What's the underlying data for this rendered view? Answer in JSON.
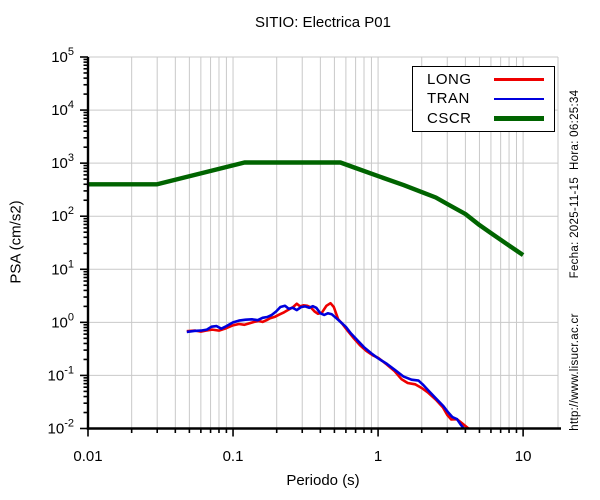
{
  "title": "SITIO: Electrica P01",
  "side_texts": {
    "datetime": "Fecha: 2025-11-15  Hora: 06:25:34",
    "url": "http://www.lisucr.ac.cr"
  },
  "colors": {
    "grid": "#c9c9c9",
    "axis": "#000000",
    "background": "#ffffff",
    "long": "#ee0000",
    "tran": "#0000dd",
    "cscr": "#006400"
  },
  "chart_data": {
    "type": "line",
    "title": "SITIO: Electrica P01",
    "xlabel": "Periodo (s)",
    "ylabel": "PSA (cm/s2)",
    "x_scale": "log",
    "y_scale": "log",
    "xlim": [
      0.01,
      17.4
    ],
    "ylim": [
      0.01,
      100000
    ],
    "x_tick_values": [
      0.01,
      0.1,
      1,
      10
    ],
    "x_tick_labels": [
      "0.01",
      "0.1",
      "1",
      "10"
    ],
    "y_tick_exponents": [
      5,
      4,
      3,
      2,
      1,
      0,
      -1,
      -2
    ],
    "grid": "vertical lines at all log minor/major positions; horizontal lines at decades",
    "legend_position": "top-right",
    "legend_entries": [
      "LONG",
      "TRAN",
      "CSCR"
    ],
    "series": [
      {
        "name": "LONG",
        "color": "#ee0000",
        "width": 2.6,
        "points": [
          [
            0.048,
            0.68
          ],
          [
            0.055,
            0.7
          ],
          [
            0.06,
            0.67
          ],
          [
            0.065,
            0.7
          ],
          [
            0.072,
            0.73
          ],
          [
            0.08,
            0.7
          ],
          [
            0.09,
            0.78
          ],
          [
            0.1,
            0.88
          ],
          [
            0.11,
            0.93
          ],
          [
            0.12,
            0.9
          ],
          [
            0.13,
            0.96
          ],
          [
            0.14,
            1.02
          ],
          [
            0.15,
            1.06
          ],
          [
            0.16,
            1.02
          ],
          [
            0.17,
            1.1
          ],
          [
            0.18,
            1.2
          ],
          [
            0.195,
            1.28
          ],
          [
            0.21,
            1.42
          ],
          [
            0.225,
            1.55
          ],
          [
            0.24,
            1.72
          ],
          [
            0.26,
            1.95
          ],
          [
            0.275,
            2.25
          ],
          [
            0.29,
            2.0
          ],
          [
            0.305,
            2.1
          ],
          [
            0.325,
            2.05
          ],
          [
            0.345,
            1.9
          ],
          [
            0.365,
            1.6
          ],
          [
            0.385,
            1.45
          ],
          [
            0.41,
            1.52
          ],
          [
            0.44,
            2.05
          ],
          [
            0.47,
            2.3
          ],
          [
            0.495,
            1.95
          ],
          [
            0.53,
            1.15
          ],
          [
            0.57,
            0.92
          ],
          [
            0.62,
            0.68
          ],
          [
            0.68,
            0.5
          ],
          [
            0.75,
            0.37
          ],
          [
            0.83,
            0.29
          ],
          [
            0.92,
            0.24
          ],
          [
            1.0,
            0.215
          ],
          [
            1.15,
            0.16
          ],
          [
            1.3,
            0.12
          ],
          [
            1.45,
            0.085
          ],
          [
            1.6,
            0.072
          ],
          [
            1.8,
            0.068
          ],
          [
            2.0,
            0.058
          ],
          [
            2.2,
            0.048
          ],
          [
            2.5,
            0.035
          ],
          [
            2.8,
            0.025
          ],
          [
            3.0,
            0.018
          ],
          [
            3.2,
            0.0148
          ],
          [
            3.5,
            0.015
          ],
          [
            3.8,
            0.0125
          ],
          [
            4.2,
            0.01
          ]
        ]
      },
      {
        "name": "TRAN",
        "color": "#0000dd",
        "width": 2.6,
        "points": [
          [
            0.048,
            0.66
          ],
          [
            0.054,
            0.69
          ],
          [
            0.06,
            0.7
          ],
          [
            0.066,
            0.73
          ],
          [
            0.071,
            0.83
          ],
          [
            0.077,
            0.85
          ],
          [
            0.083,
            0.76
          ],
          [
            0.09,
            0.85
          ],
          [
            0.1,
            1.0
          ],
          [
            0.11,
            1.08
          ],
          [
            0.122,
            1.12
          ],
          [
            0.135,
            1.14
          ],
          [
            0.148,
            1.1
          ],
          [
            0.16,
            1.22
          ],
          [
            0.172,
            1.26
          ],
          [
            0.185,
            1.38
          ],
          [
            0.198,
            1.6
          ],
          [
            0.212,
            1.95
          ],
          [
            0.228,
            2.05
          ],
          [
            0.242,
            1.8
          ],
          [
            0.258,
            1.88
          ],
          [
            0.275,
            1.7
          ],
          [
            0.295,
            1.95
          ],
          [
            0.315,
            2.0
          ],
          [
            0.335,
            1.88
          ],
          [
            0.355,
            2.02
          ],
          [
            0.375,
            1.88
          ],
          [
            0.4,
            1.48
          ],
          [
            0.425,
            1.38
          ],
          [
            0.45,
            1.48
          ],
          [
            0.48,
            1.42
          ],
          [
            0.515,
            1.2
          ],
          [
            0.555,
            1.0
          ],
          [
            0.6,
            0.82
          ],
          [
            0.65,
            0.62
          ],
          [
            0.72,
            0.46
          ],
          [
            0.8,
            0.34
          ],
          [
            0.9,
            0.26
          ],
          [
            1.0,
            0.21
          ],
          [
            1.15,
            0.165
          ],
          [
            1.3,
            0.128
          ],
          [
            1.5,
            0.095
          ],
          [
            1.7,
            0.083
          ],
          [
            1.9,
            0.08
          ],
          [
            2.05,
            0.066
          ],
          [
            2.25,
            0.05
          ],
          [
            2.5,
            0.037
          ],
          [
            2.8,
            0.027
          ],
          [
            3.05,
            0.02
          ],
          [
            3.25,
            0.0165
          ],
          [
            3.5,
            0.015
          ],
          [
            3.7,
            0.012
          ],
          [
            3.9,
            0.01
          ]
        ]
      },
      {
        "name": "CSCR",
        "color": "#006400",
        "width": 4.4,
        "points": [
          [
            0.01,
            400
          ],
          [
            0.03,
            400
          ],
          [
            0.12,
            1030
          ],
          [
            0.55,
            1030
          ],
          [
            0.7,
            810
          ],
          [
            1.0,
            570
          ],
          [
            1.5,
            385
          ],
          [
            2.0,
            285
          ],
          [
            2.5,
            225
          ],
          [
            3.0,
            170
          ],
          [
            4.0,
            110
          ],
          [
            5.0,
            68
          ],
          [
            6.0,
            48
          ],
          [
            8.0,
            28
          ],
          [
            10.0,
            18.5
          ]
        ]
      }
    ]
  }
}
